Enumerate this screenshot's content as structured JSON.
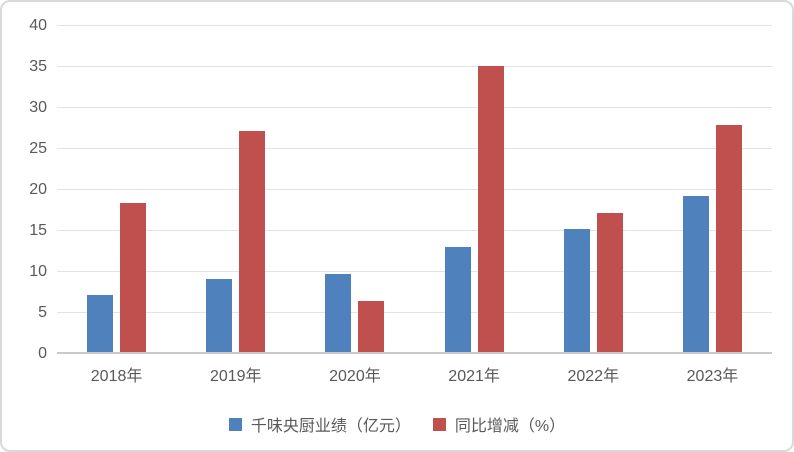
{
  "chart_data": {
    "type": "bar",
    "title": "",
    "xlabel": "",
    "ylabel": "",
    "categories": [
      "2018年",
      "2019年",
      "2020年",
      "2021年",
      "2022年",
      "2023年"
    ],
    "series": [
      {
        "name": "千味央厨业绩（亿元）",
        "color": "#4F81BC",
        "values": [
          7.0,
          8.9,
          9.5,
          12.8,
          15.0,
          19.0
        ]
      },
      {
        "name": "同比增减（%）",
        "color": "#C0504D",
        "values": [
          18.2,
          26.9,
          6.2,
          34.9,
          16.9,
          27.7
        ]
      }
    ],
    "ylim": [
      0,
      40
    ],
    "yticks": [
      0,
      5,
      10,
      15,
      20,
      25,
      30,
      35,
      40
    ],
    "grid": true,
    "legend_position": "bottom"
  },
  "colors": {
    "axis_text": "#595959",
    "gridline": "#E3E3E3",
    "axis_line": "#C9C9C9",
    "frame_border": "#D9D9D9",
    "background": "#FFFFFF"
  }
}
